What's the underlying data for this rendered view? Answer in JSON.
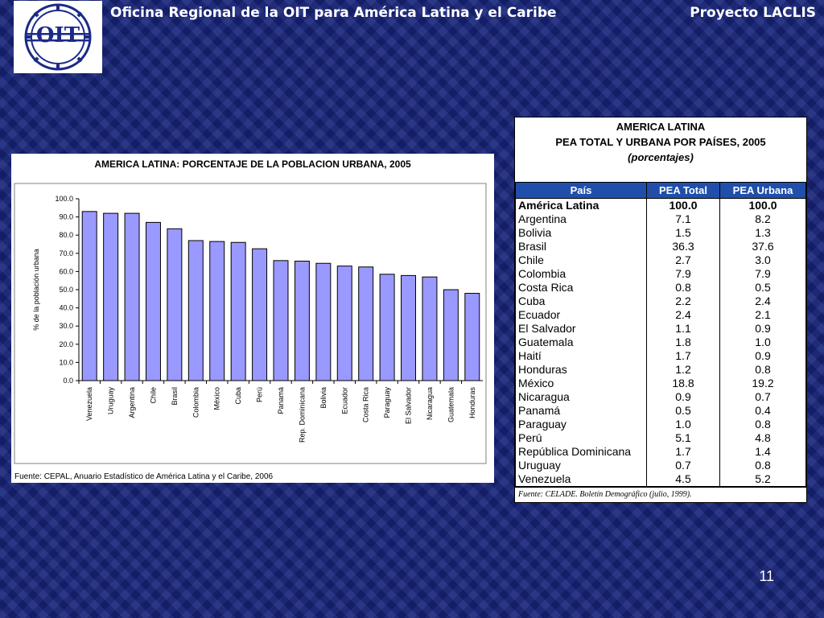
{
  "header": {
    "left_title": "Oficina Regional de la OIT para América Latina y el Caribe",
    "right_title": "Proyecto LACLIS",
    "logo_text": "OIT"
  },
  "page_number": "11",
  "chart_data": {
    "type": "bar",
    "title": "AMERICA LATINA: PORCENTAJE DE LA POBLACION URBANA, 2005",
    "xlabel": "",
    "ylabel": "% de la población urbana",
    "ylim": [
      0,
      100
    ],
    "yticks": [
      "0.0",
      "10.0",
      "20.0",
      "30.0",
      "40.0",
      "50.0",
      "60.0",
      "70.0",
      "80.0",
      "90.0",
      "100.0"
    ],
    "categories": [
      "Venezuela",
      "Uruguay",
      "Argentina",
      "Chile",
      "Brasil",
      "Colombia",
      "México",
      "Cuba",
      "Perú",
      "Panamá",
      "Rep. Dominicana",
      "Bolivia",
      "Ecuador",
      "Costa Rica",
      "Paraguay",
      "El Salvador",
      "Nicaragua",
      "Guatemala",
      "Honduras"
    ],
    "values": [
      93.0,
      92.0,
      92.0,
      87.0,
      83.5,
      77.0,
      76.5,
      76.0,
      72.5,
      66.0,
      65.7,
      64.5,
      63.0,
      62.5,
      58.5,
      57.8,
      57.0,
      50.0,
      48.0
    ],
    "grid": false,
    "legend": "none",
    "bar_color": "#9999ff",
    "source": "Fuente: CEPAL, Anuario Estadístico de América Latina y el Caribe, 2006"
  },
  "table": {
    "caption_line1": "AMERICA LATINA",
    "caption_line2": "PEA TOTAL Y URBANA POR PAÍSES, 2005",
    "caption_line3": "(porcentajes)",
    "headers": [
      "País",
      "PEA Total",
      "PEA Urbana"
    ],
    "header_color": "#1f4faa",
    "rows": [
      [
        "América Latina",
        "100.0",
        "100.0"
      ],
      [
        "Argentina",
        "7.1",
        "8.2"
      ],
      [
        "Bolivia",
        "1.5",
        "1.3"
      ],
      [
        "Brasil",
        "36.3",
        "37.6"
      ],
      [
        "Chile",
        "2.7",
        "3.0"
      ],
      [
        "Colombia",
        "7.9",
        "7.9"
      ],
      [
        "Costa Rica",
        "0.8",
        "0.5"
      ],
      [
        "Cuba",
        "2.2",
        "2.4"
      ],
      [
        "Ecuador",
        "2.4",
        "2.1"
      ],
      [
        "El Salvador",
        "1.1",
        "0.9"
      ],
      [
        "Guatemala",
        "1.8",
        "1.0"
      ],
      [
        "Haití",
        "1.7",
        "0.9"
      ],
      [
        "Honduras",
        "1.2",
        "0.8"
      ],
      [
        "México",
        "18.8",
        "19.2"
      ],
      [
        "Nicaragua",
        "0.9",
        "0.7"
      ],
      [
        "Panamá",
        "0.5",
        "0.4"
      ],
      [
        "Paraguay",
        "1.0",
        "0.8"
      ],
      [
        "Perú",
        "5.1",
        "4.8"
      ],
      [
        "República Dominicana",
        "1.7",
        "1.4"
      ],
      [
        "Uruguay",
        "0.7",
        "0.8"
      ],
      [
        "Venezuela",
        "4.5",
        "5.2"
      ]
    ],
    "source": "Fuente: CELADE. Boletín Demográfico (julio, 1999)."
  }
}
